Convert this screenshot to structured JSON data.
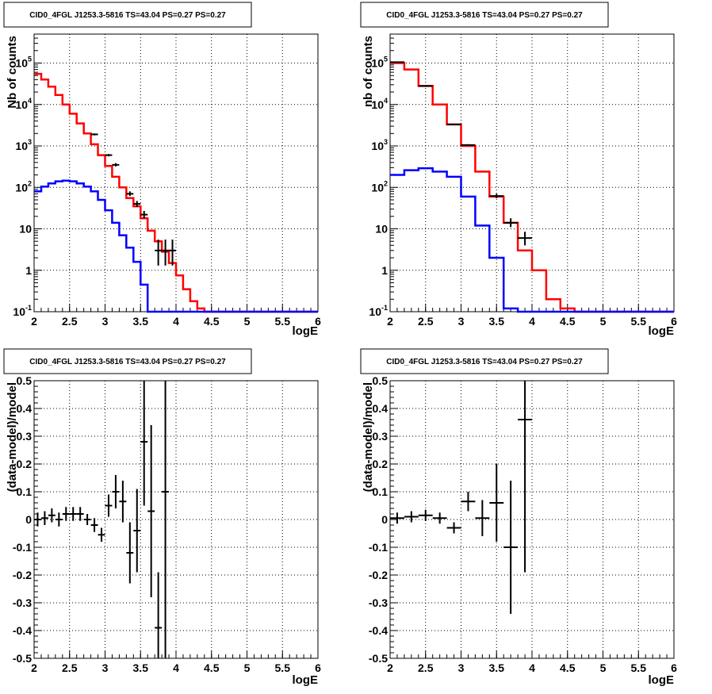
{
  "panels": [
    {
      "title": "CID0_4FGL J1253.3-5816 TS=43.04 PS=0.27 PS=0.27",
      "xlabel": "logE",
      "ylabel": "Nb of counts",
      "ylog": true
    },
    {
      "title": "CID0_4FGL J1253.3-5816 TS=43.04 PS=0.27 PS=0.27",
      "xlabel": "logE",
      "ylabel": "nb of counts",
      "ylog": true
    },
    {
      "title": "CID0_4FGL J1253.3-5816 TS=43.04 PS=0.27 PS=0.27",
      "xlabel": "logE",
      "ylabel": "(data-model)/model",
      "ylog": false
    },
    {
      "title": "CID0_4FGL J1253.3-5816 TS=43.04 PS=0.27 PS=0.27",
      "xlabel": "logE",
      "ylabel": "(data-model)/model",
      "ylog": false
    }
  ],
  "colors": {
    "total_model": "#ff0000",
    "source_model": "#0000ff",
    "data": "#000000"
  },
  "chart_data": [
    {
      "type": "line",
      "title": "CID0_4FGL J1253.3-5816 TS=43.04 PS=0.27 PS=0.27",
      "xlabel": "logE",
      "ylabel": "Nb of counts",
      "yscale": "log",
      "xlim": [
        2,
        6
      ],
      "ylim": [
        0.1,
        500000
      ],
      "grid": true,
      "xticks": [
        "2",
        "2.5",
        "3",
        "3.5",
        "4",
        "4.5",
        "5",
        "5.5",
        "6"
      ],
      "yticks": [
        "10^-1",
        "1",
        "10",
        "10^2",
        "10^3",
        "10^4",
        "10^5"
      ],
      "bin_edges": [
        2.0,
        2.1,
        2.2,
        2.3,
        2.4,
        2.5,
        2.6,
        2.7,
        2.8,
        2.9,
        3.0,
        3.1,
        3.2,
        3.3,
        3.4,
        3.5,
        3.6,
        3.7,
        3.8,
        3.9,
        4.0,
        4.1,
        4.2,
        4.3,
        4.4,
        4.5,
        4.6,
        4.7,
        4.8,
        4.9,
        5.0,
        5.1,
        5.2,
        5.3,
        5.4,
        5.5,
        5.6,
        5.7,
        5.8,
        5.9,
        6.0
      ],
      "series": [
        {
          "kind": "histogram",
          "values": [
            55000,
            40000,
            27000,
            17000,
            10000,
            6000,
            3500,
            2000,
            1100,
            600,
            330,
            180,
            100,
            55,
            35,
            18,
            9,
            5,
            2.8,
            1.5,
            0.75,
            0.35,
            0.18,
            0.12,
            0.1,
            0.1,
            0.1,
            0.1,
            0.1,
            0.1,
            0.1,
            0.1,
            0.1,
            0.1,
            0.1,
            0.1,
            0.1,
            0.1,
            0.1,
            0.1
          ]
        },
        {
          "kind": "histogram",
          "values": [
            80,
            105,
            125,
            140,
            145,
            140,
            125,
            105,
            80,
            50,
            28,
            14,
            7,
            3.5,
            1.6,
            0.45,
            0.1,
            0.1,
            0.1,
            0.1,
            0.1,
            0.1,
            0.1,
            0.1,
            0.1,
            0.1,
            0.1,
            0.1,
            0.1,
            0.1,
            0.1,
            0.1,
            0.1,
            0.1,
            0.1,
            0.1,
            0.1,
            0.1,
            0.1,
            0.1
          ]
        },
        {
          "kind": "errorbar",
          "points": [
            {
              "x": 2.85,
              "y": 1900,
              "lo": 1800,
              "hi": 2000
            },
            {
              "x": 3.05,
              "y": 600,
              "lo": 560,
              "hi": 640
            },
            {
              "x": 3.15,
              "y": 350,
              "lo": 320,
              "hi": 385
            },
            {
              "x": 3.35,
              "y": 70,
              "lo": 62,
              "hi": 80
            },
            {
              "x": 3.45,
              "y": 40,
              "lo": 34,
              "hi": 47
            },
            {
              "x": 3.55,
              "y": 22,
              "lo": 18,
              "hi": 27
            },
            {
              "x": 3.75,
              "y": 3,
              "lo": 1.3,
              "hi": 5.5
            },
            {
              "x": 3.85,
              "y": 3,
              "lo": 1.3,
              "hi": 5.5
            },
            {
              "x": 3.95,
              "y": 3,
              "lo": 1.3,
              "hi": 5.5
            }
          ]
        }
      ]
    },
    {
      "type": "line",
      "title": "CID0_4FGL J1253.3-5816 TS=43.04 PS=0.27 PS=0.27",
      "xlabel": "logE",
      "ylabel": "nb of counts",
      "yscale": "log",
      "xlim": [
        2,
        6
      ],
      "ylim": [
        0.1,
        500000
      ],
      "grid": true,
      "xticks": [
        "2",
        "2.5",
        "3",
        "3.5",
        "4",
        "4.5",
        "5",
        "5.5",
        "6"
      ],
      "yticks": [
        "10^-1",
        "1",
        "10",
        "10^2",
        "10^3",
        "10^4",
        "10^5"
      ],
      "bin_edges": [
        2.0,
        2.2,
        2.4,
        2.6,
        2.8,
        3.0,
        3.2,
        3.4,
        3.6,
        3.8,
        4.0,
        4.2,
        4.4,
        4.6,
        4.8,
        5.0,
        5.2,
        5.4,
        5.6,
        5.8,
        6.0
      ],
      "series": [
        {
          "kind": "histogram",
          "values": [
            100000,
            70000,
            28000,
            10000,
            3300,
            1000,
            240,
            60,
            14,
            3,
            1,
            0.2,
            0.12,
            0.1,
            0.1,
            0.1,
            0.1,
            0.1,
            0.1,
            0.1
          ]
        },
        {
          "kind": "histogram",
          "values": [
            200,
            260,
            290,
            240,
            180,
            60,
            12,
            2,
            0.12,
            0.1,
            0.1,
            0.1,
            0.1,
            0.1,
            0.1,
            0.1,
            0.1,
            0.1,
            0.1,
            0.1
          ]
        },
        {
          "kind": "errorbar",
          "points": [
            {
              "x": 2.1,
              "y": 105000,
              "lo": 104000,
              "hi": 106000
            },
            {
              "x": 2.5,
              "y": 28000,
              "lo": 27500,
              "hi": 28500
            },
            {
              "x": 2.9,
              "y": 3300,
              "lo": 3200,
              "hi": 3400
            },
            {
              "x": 3.1,
              "y": 1050,
              "lo": 1000,
              "hi": 1100
            },
            {
              "x": 3.5,
              "y": 62,
              "lo": 55,
              "hi": 70
            },
            {
              "x": 3.7,
              "y": 14,
              "lo": 11,
              "hi": 18
            },
            {
              "x": 3.9,
              "y": 6,
              "lo": 4,
              "hi": 8.5
            }
          ]
        }
      ]
    },
    {
      "type": "scatter",
      "title": "CID0_4FGL J1253.3-5816 TS=43.04 PS=0.27 PS=0.27",
      "xlabel": "logE",
      "ylabel": "(data-model)/model",
      "xlim": [
        2,
        6
      ],
      "ylim": [
        -0.5,
        0.5
      ],
      "grid": true,
      "xticks": [
        "2",
        "2.5",
        "3",
        "3.5",
        "4",
        "4.5",
        "5",
        "5.5",
        "6"
      ],
      "yticks": [
        "-0.5",
        "-0.4",
        "-0.3",
        "-0.2",
        "-0.1",
        "0",
        "0.1",
        "0.2",
        "0.3",
        "0.4",
        "0.5"
      ],
      "series": [
        {
          "kind": "errorbar",
          "points": [
            {
              "x": 2.05,
              "y": 0.0,
              "xerr": 0.05,
              "yerr": 0.025
            },
            {
              "x": 2.15,
              "y": 0.005,
              "xerr": 0.05,
              "yerr": 0.025
            },
            {
              "x": 2.25,
              "y": 0.015,
              "xerr": 0.05,
              "yerr": 0.025
            },
            {
              "x": 2.35,
              "y": 0.0,
              "xerr": 0.05,
              "yerr": 0.025
            },
            {
              "x": 2.45,
              "y": 0.02,
              "xerr": 0.05,
              "yerr": 0.025
            },
            {
              "x": 2.55,
              "y": 0.02,
              "xerr": 0.05,
              "yerr": 0.025
            },
            {
              "x": 2.65,
              "y": 0.02,
              "xerr": 0.05,
              "yerr": 0.025
            },
            {
              "x": 2.75,
              "y": 0.0,
              "xerr": 0.05,
              "yerr": 0.02
            },
            {
              "x": 2.85,
              "y": -0.02,
              "xerr": 0.05,
              "yerr": 0.025
            },
            {
              "x": 2.95,
              "y": -0.055,
              "xerr": 0.05,
              "yerr": 0.025
            },
            {
              "x": 3.05,
              "y": 0.05,
              "xerr": 0.05,
              "yerr": 0.04
            },
            {
              "x": 3.15,
              "y": 0.1,
              "xerr": 0.05,
              "yerr": 0.06
            },
            {
              "x": 3.25,
              "y": 0.065,
              "xerr": 0.05,
              "yerr": 0.075
            },
            {
              "x": 3.35,
              "y": -0.12,
              "xerr": 0.05,
              "yerr": 0.11
            },
            {
              "x": 3.45,
              "y": -0.04,
              "xerr": 0.05,
              "yerr": 0.15
            },
            {
              "x": 3.55,
              "y": 0.28,
              "xerr": 0.05,
              "yerr": 0.23
            },
            {
              "x": 3.65,
              "y": 0.03,
              "xerr": 0.05,
              "yerr": 0.31
            },
            {
              "x": 3.75,
              "y": -0.39,
              "xerr": 0.05,
              "yerr": 0.2
            },
            {
              "x": 3.85,
              "y": 0.1,
              "xerr": 0.05,
              "yerr": 0.6
            }
          ]
        }
      ]
    },
    {
      "type": "scatter",
      "title": "CID0_4FGL J1253.3-5816 TS=43.04 PS=0.27 PS=0.27",
      "xlabel": "logE",
      "ylabel": "(data-model)/model",
      "xlim": [
        2,
        6
      ],
      "ylim": [
        -0.5,
        0.5
      ],
      "grid": true,
      "xticks": [
        "2",
        "2.5",
        "3",
        "3.5",
        "4",
        "4.5",
        "5",
        "5.5",
        "6"
      ],
      "yticks": [
        "-0.5",
        "-0.4",
        "-0.3",
        "-0.2",
        "-0.1",
        "0",
        "0.1",
        "0.2",
        "0.3",
        "0.4",
        "0.5"
      ],
      "series": [
        {
          "kind": "errorbar",
          "points": [
            {
              "x": 2.1,
              "y": 0.005,
              "xerr": 0.1,
              "yerr": 0.02
            },
            {
              "x": 2.3,
              "y": 0.01,
              "xerr": 0.1,
              "yerr": 0.02
            },
            {
              "x": 2.5,
              "y": 0.015,
              "xerr": 0.1,
              "yerr": 0.02
            },
            {
              "x": 2.7,
              "y": 0.005,
              "xerr": 0.1,
              "yerr": 0.02
            },
            {
              "x": 2.9,
              "y": -0.03,
              "xerr": 0.1,
              "yerr": 0.02
            },
            {
              "x": 3.1,
              "y": 0.065,
              "xerr": 0.1,
              "yerr": 0.035
            },
            {
              "x": 3.3,
              "y": 0.005,
              "xerr": 0.1,
              "yerr": 0.065
            },
            {
              "x": 3.5,
              "y": 0.06,
              "xerr": 0.1,
              "yerr": 0.14
            },
            {
              "x": 3.7,
              "y": -0.1,
              "xerr": 0.1,
              "yerr": 0.24
            },
            {
              "x": 3.9,
              "y": 0.36,
              "xerr": 0.1,
              "yerr": 0.55
            }
          ]
        }
      ]
    }
  ]
}
